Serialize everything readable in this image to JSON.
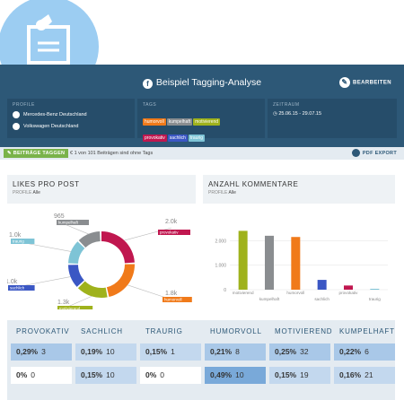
{
  "header": {
    "title": "Beispiel Tagging-Analyse",
    "edit_label": "BEARBEITEN",
    "profiles_label": "PROFILE",
    "profiles": [
      "Mercedes-Benz Deutschland",
      "Volkswagen Deutschland"
    ],
    "tags_label": "TAGS",
    "tags": [
      {
        "label": "humorvoll",
        "color": "#f07a1a"
      },
      {
        "label": "kumpelhaft",
        "color": "#8a8d90"
      },
      {
        "label": "motivierend",
        "color": "#9fb21c"
      },
      {
        "label": "provokativ",
        "color": "#c0174f"
      },
      {
        "label": "sachlich",
        "color": "#3b57c4"
      },
      {
        "label": "traurig",
        "color": "#7ec4d6"
      }
    ],
    "period_label": "ZEITRAUM",
    "period": "25.06.15 - 29.07.15"
  },
  "toolbar": {
    "tag_button": "BEITRÄGE TAGGEN",
    "info": "€ 1 von 101 Beiträgen sind ohne Tags",
    "pdf_label": "PDF EXPORT"
  },
  "likes": {
    "title": "LIKES PRO POST",
    "sub_label": "PROFILE",
    "sub_value": "Alle"
  },
  "comments": {
    "title": "ANZAHL KOMMENTARE",
    "sub_label": "PROFILE",
    "sub_value": "Alle"
  },
  "chart_data": [
    {
      "type": "pie",
      "title": "LIKES PRO POST",
      "categories": [
        "provokativ",
        "humorvoll",
        "motivierend",
        "sachlich",
        "traurig",
        "kumpelhaft"
      ],
      "values": [
        2000,
        1800,
        1300,
        1000,
        1000,
        965
      ],
      "labels": [
        "2.0k",
        "1.8k",
        "1.3k",
        "1.0k",
        "1.0k",
        "965"
      ],
      "colors": [
        "#c0174f",
        "#f07a1a",
        "#9fb21c",
        "#3b57c4",
        "#7ec4d6",
        "#8a8d90"
      ]
    },
    {
      "type": "bar",
      "title": "ANZAHL KOMMENTARE",
      "categories": [
        "motivierend",
        "kumpelhaft",
        "humorvoll",
        "sachlich",
        "provokativ",
        "traurig"
      ],
      "values": [
        2400,
        2200,
        2150,
        400,
        170,
        10
      ],
      "colors": [
        "#9fb21c",
        "#8a8d90",
        "#f07a1a",
        "#3b57c4",
        "#c0174f",
        "#7ec4d6"
      ],
      "yticks": [
        "2.000",
        "1.000",
        "0"
      ],
      "ylim": [
        0,
        3000
      ]
    }
  ],
  "table": {
    "columns": [
      "PROVOKATIV",
      "SACHLICH",
      "TRAURIG",
      "HUMORVOLL",
      "MOTIVIEREND",
      "KUMPELHAFT"
    ],
    "rows": [
      [
        {
          "pct": "0,29%",
          "count": "3"
        },
        {
          "pct": "0,19%",
          "count": "10"
        },
        {
          "pct": "0,15%",
          "count": "1"
        },
        {
          "pct": "0,21%",
          "count": "8"
        },
        {
          "pct": "0,25%",
          "count": "32"
        },
        {
          "pct": "0,22%",
          "count": "6"
        }
      ],
      [
        {
          "pct": "0%",
          "count": "0"
        },
        {
          "pct": "0,15%",
          "count": "10"
        },
        {
          "pct": "0%",
          "count": "0"
        },
        {
          "pct": "0,49%",
          "count": "10"
        },
        {
          "pct": "0,15%",
          "count": "19"
        },
        {
          "pct": "0,16%",
          "count": "21"
        }
      ]
    ]
  }
}
